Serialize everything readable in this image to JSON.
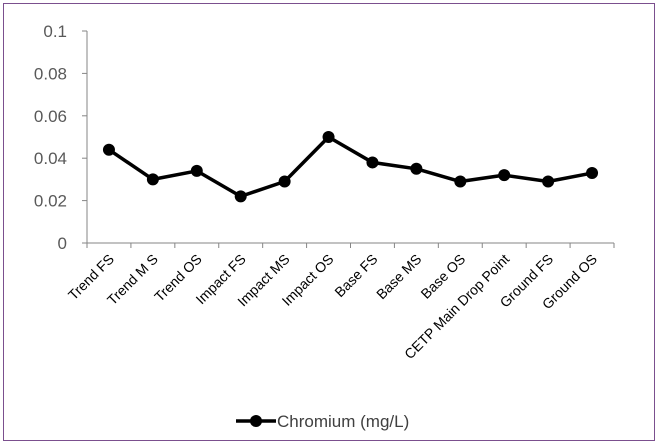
{
  "chart_data": {
    "type": "line",
    "categories": [
      "Trend FS",
      "Trend M S",
      "Trend OS",
      "Impact FS",
      "Impact MS",
      "Impact OS",
      "Base FS",
      "Base MS",
      "Base OS",
      "CETP Main Drop Point",
      "Ground FS",
      "Ground OS"
    ],
    "series": [
      {
        "name": "Chromium (mg/L)",
        "values": [
          0.044,
          0.03,
          0.034,
          0.022,
          0.029,
          0.05,
          0.038,
          0.035,
          0.029,
          0.032,
          0.029,
          0.033
        ],
        "color": "#000000"
      }
    ],
    "yticks": [
      "0",
      "0.02",
      "0.04",
      "0.06",
      "0.08",
      "0.1"
    ],
    "ylim": [
      0,
      0.1
    ],
    "grid": false,
    "legend_position": "bottom",
    "border_color": "#7b4f8e"
  }
}
